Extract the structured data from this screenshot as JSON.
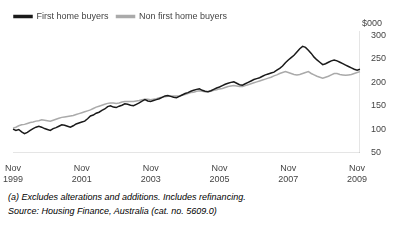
{
  "chart_data": {
    "type": "line",
    "ylabel": "$000",
    "annotations": [
      "(a) Excludes alterations and additions.  Includes refinancing.",
      "Source:  Housing Finance, Australia (cat. no. 5609.0)"
    ],
    "legend": "upper left",
    "grid": false,
    "ylim": [
      50,
      310
    ],
    "yticks": [
      50,
      100,
      150,
      200,
      250,
      300
    ],
    "categories": [
      "Nov\n1999",
      null,
      null,
      null,
      null,
      null,
      null,
      null,
      null,
      null,
      null,
      null,
      null,
      null,
      null,
      null,
      null,
      null,
      null,
      null,
      null,
      null,
      null,
      null,
      "Nov\n2001",
      null,
      null,
      null,
      null,
      null,
      null,
      null,
      null,
      null,
      null,
      null,
      null,
      null,
      null,
      null,
      null,
      null,
      null,
      null,
      null,
      null,
      null,
      null,
      "Nov\n2003",
      null,
      null,
      null,
      null,
      null,
      null,
      null,
      null,
      null,
      null,
      null,
      null,
      null,
      null,
      null,
      null,
      null,
      null,
      null,
      null,
      null,
      null,
      null,
      "Nov\n2005",
      null,
      null,
      null,
      null,
      null,
      null,
      null,
      null,
      null,
      null,
      null,
      null,
      null,
      null,
      null,
      null,
      null,
      null,
      null,
      null,
      null,
      null,
      null,
      "Nov\n2007",
      null,
      null,
      null,
      null,
      null,
      null,
      null,
      null,
      null,
      null,
      null,
      null,
      null,
      null,
      null,
      null,
      null,
      null,
      null,
      null,
      null,
      null,
      null,
      "Nov\n2009",
      null
    ],
    "series": [
      {
        "name": "First home buyers",
        "color": "#1a1a1a",
        "values": [
          100,
          97,
          99,
          94,
          90,
          93,
          97,
          101,
          104,
          106,
          104,
          101,
          99,
          97,
          101,
          103,
          106,
          109,
          108,
          106,
          104,
          107,
          111,
          113,
          115,
          117,
          122,
          128,
          130,
          134,
          136,
          140,
          143,
          148,
          150,
          147,
          146,
          149,
          151,
          154,
          153,
          151,
          150,
          153,
          156,
          160,
          163,
          160,
          159,
          161,
          163,
          165,
          168,
          171,
          172,
          170,
          168,
          167,
          170,
          173,
          176,
          178,
          181,
          183,
          185,
          186,
          183,
          181,
          180,
          182,
          185,
          188,
          190,
          193,
          196,
          198,
          200,
          201,
          198,
          195,
          194,
          197,
          200,
          203,
          206,
          208,
          210,
          213,
          216,
          218,
          220,
          222,
          226,
          230,
          235,
          242,
          248,
          253,
          258,
          265,
          272,
          277,
          275,
          269,
          262,
          254,
          248,
          243,
          238,
          240,
          243,
          246,
          248,
          246,
          243,
          240,
          237,
          234,
          231,
          228,
          226,
          228
        ]
      },
      {
        "name": "Non first home buyers",
        "color": "#aaaaaa",
        "values": [
          102,
          104,
          107,
          109,
          110,
          112,
          114,
          115,
          117,
          118,
          120,
          119,
          118,
          117,
          119,
          121,
          123,
          125,
          126,
          127,
          128,
          129,
          131,
          133,
          135,
          137,
          139,
          141,
          144,
          147,
          149,
          151,
          153,
          155,
          156,
          156,
          155,
          156,
          158,
          159,
          159,
          159,
          159,
          160,
          161,
          163,
          164,
          164,
          163,
          164,
          165,
          167,
          168,
          169,
          170,
          171,
          171,
          171,
          171,
          173,
          174,
          176,
          178,
          179,
          181,
          182,
          181,
          180,
          180,
          181,
          183,
          184,
          186,
          187,
          189,
          191,
          192,
          193,
          192,
          191,
          191,
          193,
          195,
          197,
          199,
          201,
          203,
          205,
          207,
          209,
          211,
          214,
          216,
          219,
          221,
          223,
          221,
          219,
          217,
          216,
          217,
          219,
          221,
          223,
          219,
          216,
          213,
          211,
          209,
          211,
          213,
          216,
          219,
          219,
          217,
          216,
          215,
          216,
          217,
          219,
          221,
          223
        ]
      }
    ]
  }
}
